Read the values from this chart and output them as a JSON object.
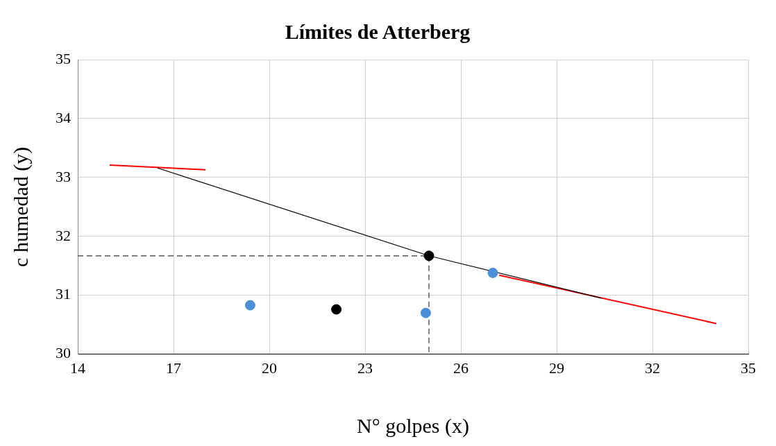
{
  "chart_data": {
    "type": "scatter",
    "title": "Límites de Atterberg",
    "xlabel": "N° golpes (x)",
    "ylabel": "c humedad (y)",
    "xlim": [
      14,
      35
    ],
    "xticks": [
      14,
      17,
      20,
      23,
      26,
      29,
      32,
      35
    ],
    "ylim": [
      30,
      35
    ],
    "yticks": [
      30,
      31,
      32,
      33,
      34,
      35
    ],
    "grid": true,
    "legend": false,
    "series": [
      {
        "type": "line",
        "color": "#ff0000",
        "x": [
          15.0,
          18.0
        ],
        "values": [
          33.21,
          33.13
        ],
        "marker": "none",
        "line_style": "solid"
      },
      {
        "type": "line",
        "color": "#ff0000",
        "x": [
          27.2,
          34.0
        ],
        "values": [
          31.34,
          30.52
        ],
        "marker": "none",
        "line_style": "solid"
      },
      {
        "type": "line",
        "color": "#000000",
        "x": [
          16.5,
          25.0,
          30.4
        ],
        "values": [
          33.16,
          31.67,
          30.95
        ],
        "marker": "none",
        "line_style": "solid"
      },
      {
        "type": "line",
        "color": "#333333",
        "x": [
          14,
          25.0,
          25.0
        ],
        "values": [
          31.67,
          31.67,
          30
        ],
        "marker": "none",
        "line_style": "dashed"
      },
      {
        "type": "scatter",
        "color": "#4a90d9",
        "x": [
          19.4,
          24.9,
          27.0
        ],
        "values": [
          30.83,
          30.7,
          31.38
        ],
        "marker": "circle"
      },
      {
        "type": "scatter",
        "color": "#000000",
        "x": [
          22.1,
          25.0
        ],
        "values": [
          30.76,
          31.67
        ],
        "marker": "circle"
      }
    ]
  }
}
